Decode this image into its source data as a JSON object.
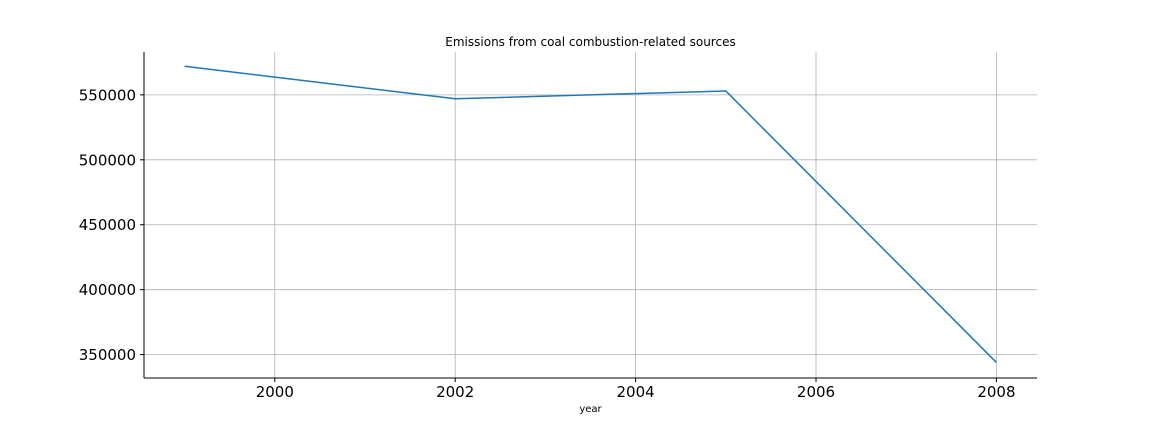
{
  "chart_data": {
    "type": "line",
    "title": "Emissions from coal combustion-related sources",
    "xlabel": "year",
    "ylabel": "",
    "x": [
      1999,
      2002,
      2005,
      2008
    ],
    "series": [
      {
        "values": [
          572000,
          547000,
          553000,
          344000
        ],
        "color": "#1f77b4"
      }
    ],
    "xlim": [
      1998.55,
      2008.45
    ],
    "ylim": [
      332000,
      583000
    ],
    "xticks": [
      2000,
      2002,
      2004,
      2006,
      2008
    ],
    "yticks": [
      350000,
      400000,
      450000,
      500000,
      550000
    ],
    "grid": true,
    "legend": "none"
  }
}
